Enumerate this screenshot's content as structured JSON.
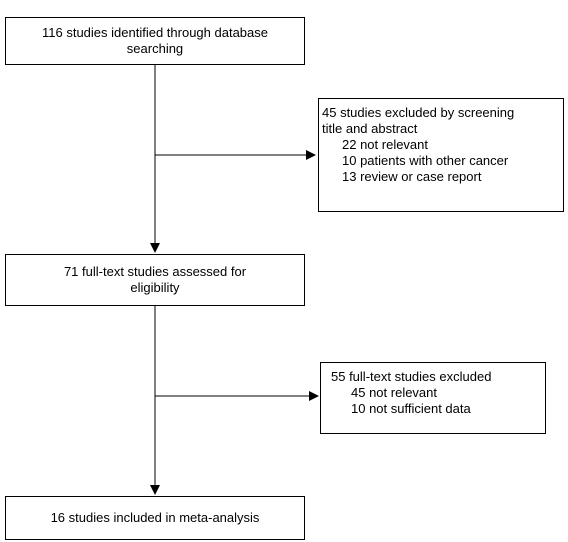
{
  "diagram": {
    "identified": {
      "lines": [
        "116 studies identified through database",
        "searching"
      ]
    },
    "excluded_screening": {
      "heading": [
        "45 studies excluded by screening",
        "title and abstract"
      ],
      "items": [
        "22 not relevant",
        "10 patients with other cancer",
        "13 review or case report"
      ]
    },
    "fulltext_assessed": {
      "lines": [
        "71 full-text studies assessed for",
        "eligibility"
      ]
    },
    "excluded_fulltext": {
      "heading": "55 full-text studies excluded",
      "items": [
        "45 not relevant",
        "10 not sufficient data"
      ]
    },
    "included": {
      "text": "16 studies included in meta-analysis"
    }
  }
}
